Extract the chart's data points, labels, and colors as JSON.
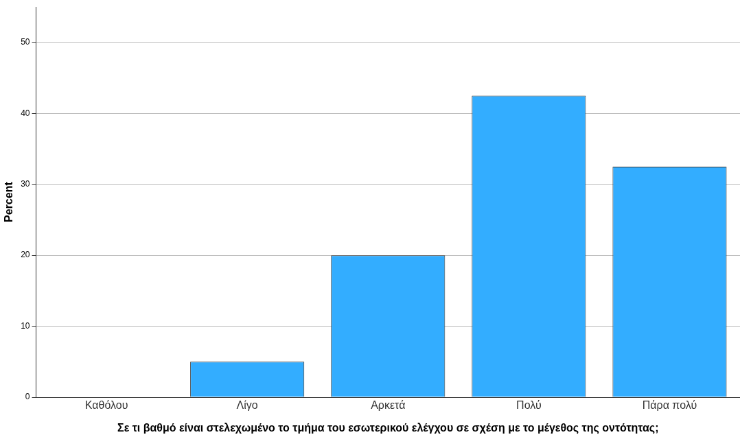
{
  "chart_data": {
    "type": "bar",
    "xlabel": "Σε τι βαθμό είναι στελεχωμένο το τμήμα του εσωτερικού ελέγχου σε σχέση με το μέγεθος της οντότητας;",
    "ylabel": "Percent",
    "categories": [
      "Καθόλου",
      "Λίγο",
      "Αρκετά",
      "Πολύ",
      "Πάρα πολύ"
    ],
    "values": [
      0,
      5,
      20,
      42.5,
      32.5
    ],
    "color": "#33adff",
    "ylim": [
      0,
      55
    ],
    "yticks": [
      0,
      10,
      20,
      30,
      40,
      50
    ],
    "grid": "y"
  }
}
